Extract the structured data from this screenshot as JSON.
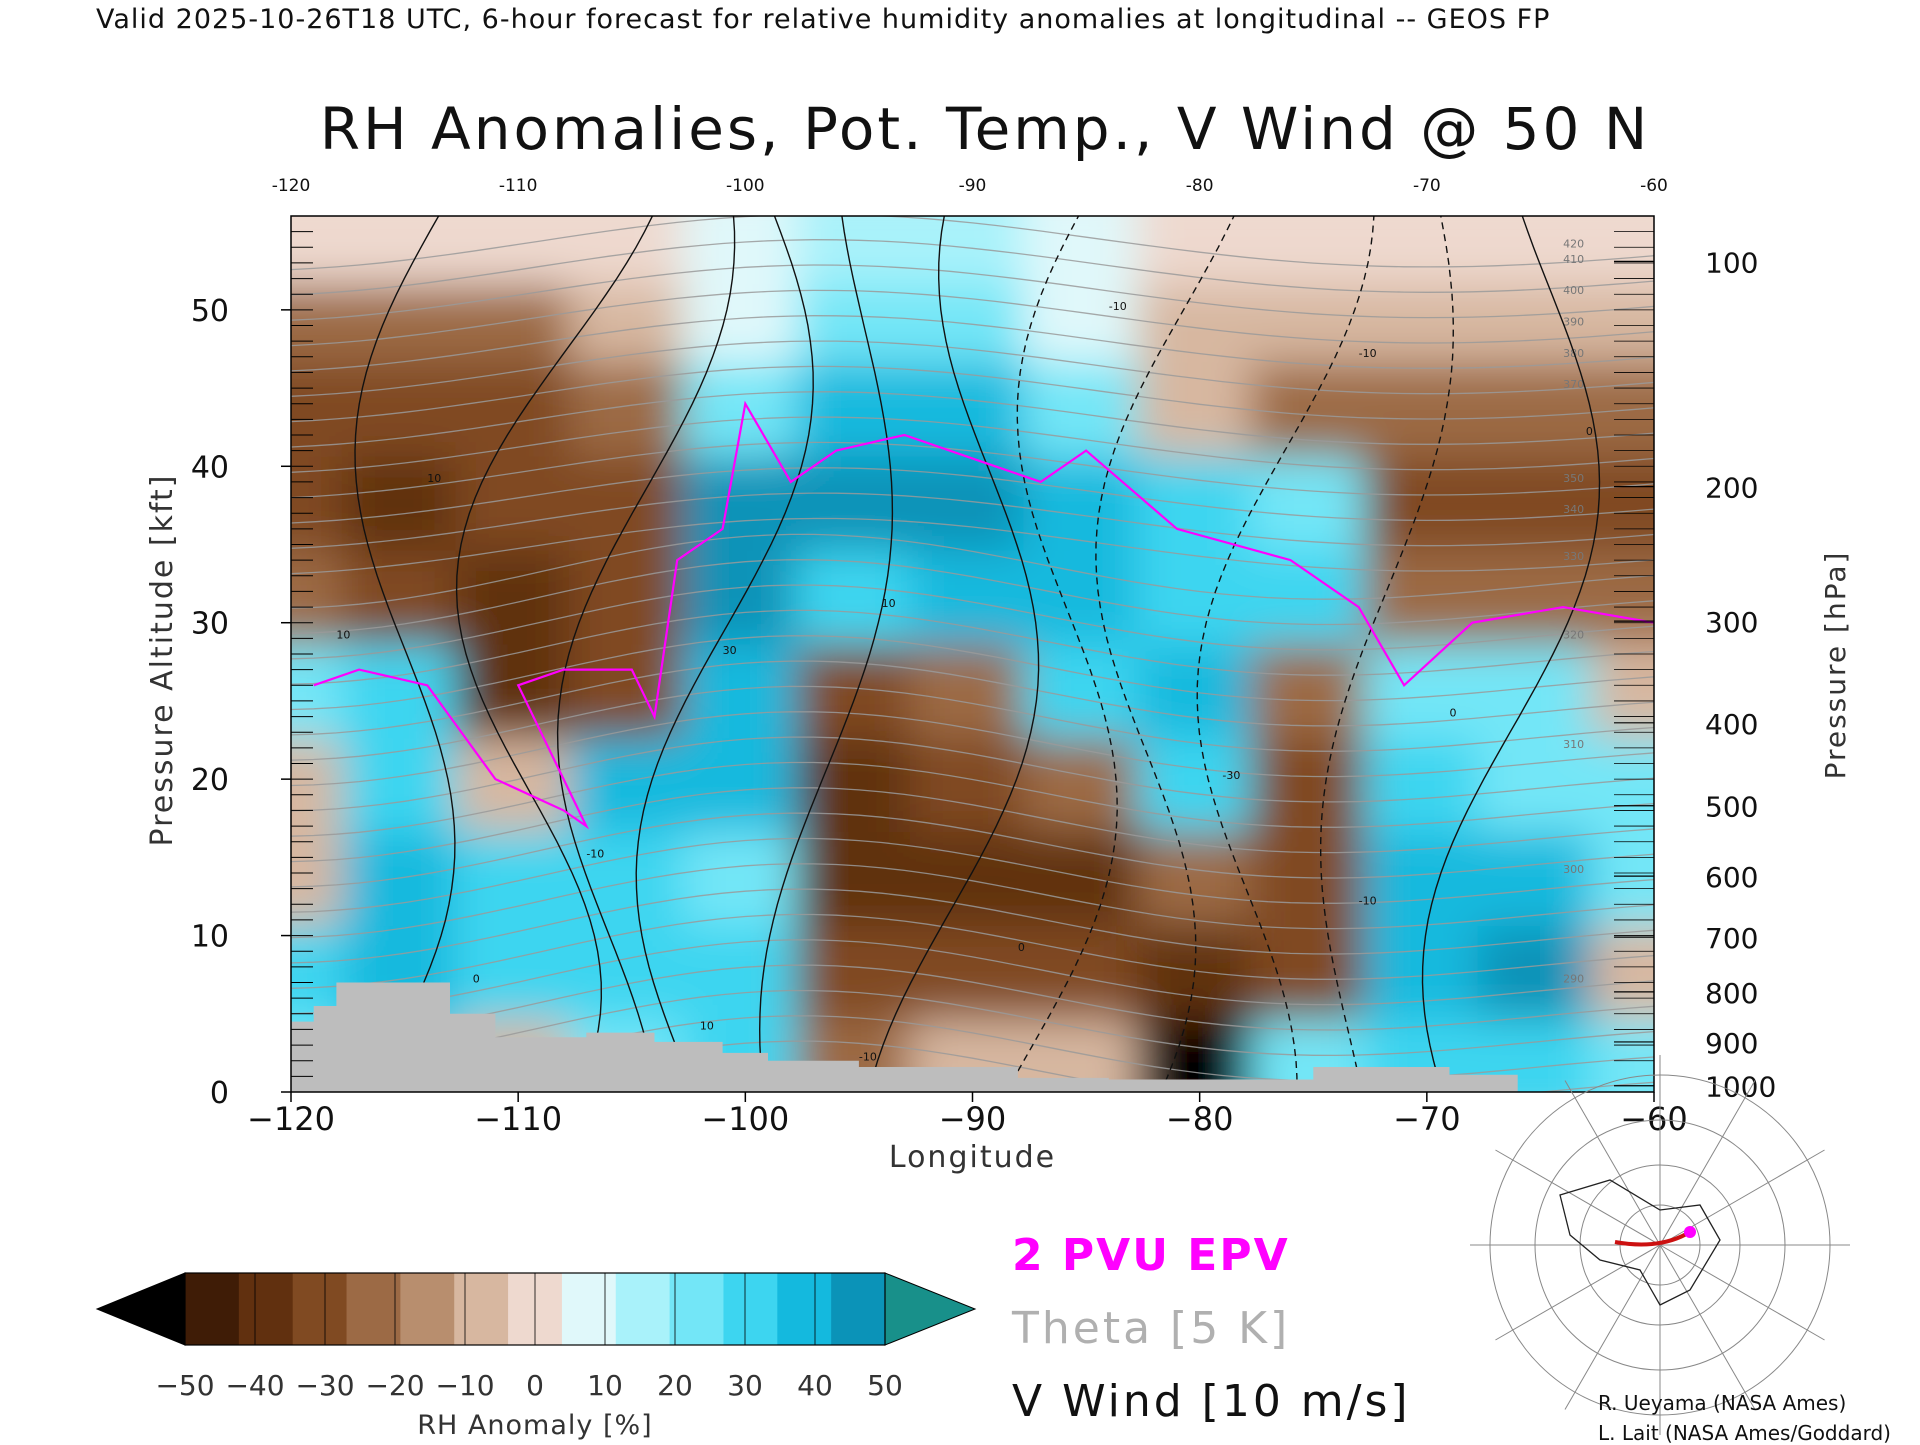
{
  "header": {
    "text": "Valid 2025-10-26T18 UTC, 6-hour forecast for relative humidity anomalies at longitudinal -- GEOS FP"
  },
  "chart_data": {
    "type": "heatmap",
    "title": "RH Anomalies, Pot. Temp., V Wind @ 50 N",
    "xlabel": "Longitude",
    "ylabel": "Pressure Altitude [kft]",
    "y2label": "Pressure [hPa]",
    "xlim": [
      -120,
      -60
    ],
    "ylim": [
      0,
      56
    ],
    "x_ticks": [
      -120,
      -110,
      -100,
      -90,
      -80,
      -70,
      -60
    ],
    "x_tick_labels": [
      "−120",
      "−110",
      "−100",
      "−90",
      "−80",
      "−70",
      "−60"
    ],
    "top_tick_labels": [
      "-120",
      "-110",
      "-100",
      "-90",
      "-80",
      "-70",
      "-60"
    ],
    "y_ticks": [
      0,
      10,
      20,
      30,
      40,
      50
    ],
    "pressure_ticks": [
      {
        "hpa": "100",
        "kft": 53.1
      },
      {
        "hpa": "200",
        "kft": 38.7
      },
      {
        "hpa": "300",
        "kft": 30.1
      },
      {
        "hpa": "400",
        "kft": 23.6
      },
      {
        "hpa": "500",
        "kft": 18.3
      },
      {
        "hpa": "600",
        "kft": 13.8
      },
      {
        "hpa": "700",
        "kft": 9.9
      },
      {
        "hpa": "800",
        "kft": 6.4
      },
      {
        "hpa": "900",
        "kft": 3.2
      },
      {
        "hpa": "1000",
        "kft": 0.4
      }
    ],
    "colorbar": {
      "label": "RH Anomaly [%]",
      "ticks": [
        "−50",
        "−40",
        "−30",
        "−20",
        "−10",
        "0",
        "10",
        "20",
        "30",
        "40",
        "50"
      ],
      "colors": [
        "#000000",
        "#3f1c06",
        "#61300f",
        "#804a22",
        "#9c6a45",
        "#b88e6e",
        "#d7b7a0",
        "#eed9cf",
        "#e0f8fa",
        "#a9f2fa",
        "#73e6f7",
        "#3dd5f0",
        "#14b9de",
        "#0b93b8",
        "#18908a"
      ]
    },
    "rh_anomaly_field": {
      "lon": [
        -120,
        -115,
        -110,
        -105,
        -100,
        -95,
        -90,
        -85,
        -80,
        -75,
        -70,
        -65,
        -60
      ],
      "alt_kft": [
        2,
        8,
        14,
        20,
        26,
        32,
        38,
        44,
        50,
        55
      ],
      "values": [
        [
          10,
          20,
          -10,
          10,
          20,
          -20,
          -10,
          -10,
          -50,
          10,
          20,
          20,
          10
        ],
        [
          20,
          30,
          20,
          20,
          20,
          -30,
          -30,
          -30,
          -40,
          -30,
          30,
          40,
          -10
        ],
        [
          -10,
          30,
          20,
          20,
          10,
          -40,
          -40,
          -40,
          -20,
          -30,
          30,
          30,
          10
        ],
        [
          -10,
          20,
          -10,
          30,
          30,
          -40,
          -30,
          -20,
          20,
          -30,
          20,
          10,
          10
        ],
        [
          10,
          20,
          -40,
          -30,
          30,
          -30,
          -20,
          20,
          30,
          -20,
          10,
          10,
          -10
        ],
        [
          -20,
          -30,
          -40,
          -30,
          40,
          20,
          30,
          30,
          20,
          20,
          -20,
          -20,
          -20
        ],
        [
          -30,
          -40,
          -30,
          -30,
          40,
          40,
          40,
          30,
          20,
          10,
          -30,
          -30,
          -30
        ],
        [
          -30,
          -30,
          -30,
          -20,
          10,
          30,
          30,
          10,
          -10,
          -20,
          -20,
          -20,
          -20
        ],
        [
          -20,
          -20,
          -20,
          -10,
          0,
          10,
          10,
          0,
          -10,
          -10,
          -10,
          -10,
          -10
        ],
        [
          -5,
          -5,
          -5,
          -5,
          0,
          5,
          5,
          0,
          -5,
          -5,
          -5,
          -5,
          -5
        ]
      ]
    },
    "theta_contours": [
      {
        "label": "290"
      },
      {
        "label": "300"
      },
      {
        "label": "310"
      },
      {
        "label": "320"
      },
      {
        "label": "330"
      },
      {
        "label": "340"
      },
      {
        "label": "350"
      },
      {
        "label": "370"
      },
      {
        "label": "380"
      },
      {
        "label": "390"
      },
      {
        "label": "400"
      },
      {
        "label": "410"
      },
      {
        "label": "420"
      }
    ],
    "wind_contour_labels": [
      "10",
      "0",
      "-10",
      "-30",
      "30",
      "10",
      "0",
      "10",
      "-10",
      "-10",
      "0",
      "0",
      "-10",
      "10",
      "-10"
    ],
    "pv_label": "2 PVU EPV",
    "theta_label": "Theta [5 K]",
    "wind_label": "V Wind [10 m/s]"
  },
  "credits": {
    "line1": "R. Ueyama (NASA Ames)",
    "line2": "L. Lait (NASA Ames/Goddard)"
  },
  "colors": {
    "pv": "#ff00ff",
    "theta": "#9a9a9a",
    "terrain": "#bdbdbd",
    "map_track": "#cc1111"
  }
}
